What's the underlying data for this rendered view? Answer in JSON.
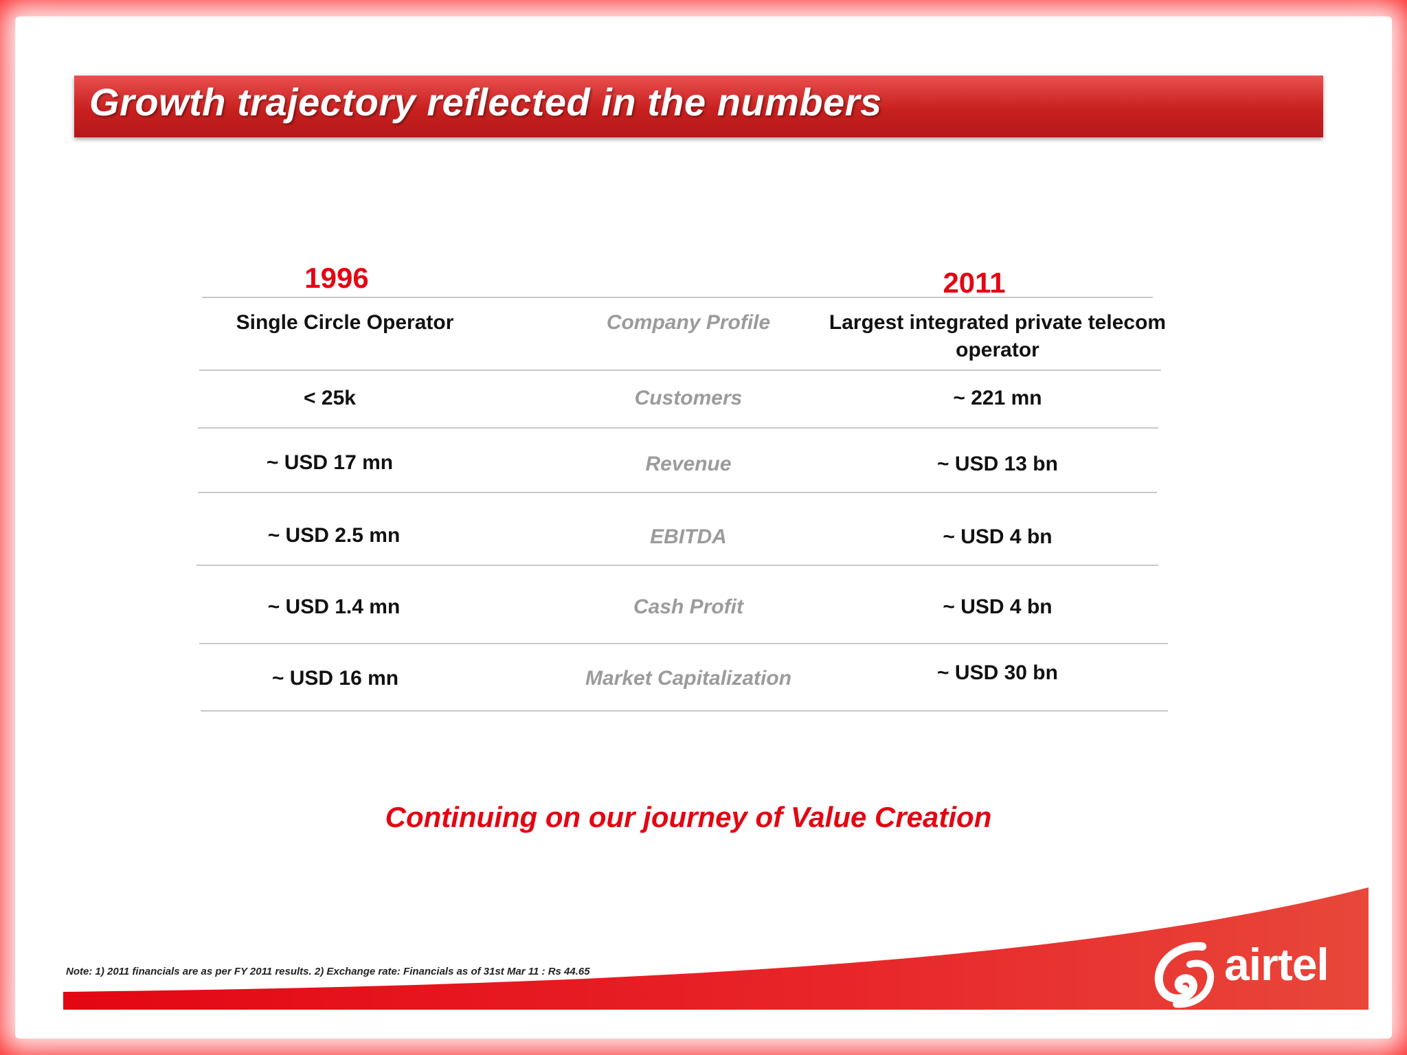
{
  "slide": {
    "title": "Growth trajectory reflected in the numbers",
    "year_left": "1996",
    "year_right": "2011",
    "rows": [
      {
        "left": "Single Circle Operator",
        "metric": "Company Profile",
        "right_line1": "Largest integrated private telecom",
        "right_line2": "operator"
      },
      {
        "left": "< 25k",
        "metric": "Customers",
        "right": "~ 221 mn"
      },
      {
        "left": "~ USD 17 mn",
        "metric": "Revenue",
        "right": "~ USD 13 bn"
      },
      {
        "left": "~ USD 2.5 mn",
        "metric": "EBITDA",
        "right": "~ USD 4 bn"
      },
      {
        "left": "~ USD 1.4 mn",
        "metric": "Cash Profit",
        "right": "~ USD 4 bn"
      },
      {
        "left": "~ USD 16 mn",
        "metric": "Market Capitalization",
        "right": "~ USD 30 bn"
      }
    ],
    "tagline": "Continuing on our journey of Value Creation",
    "note": "Note: 1) 2011 financials are as per FY 2011 results. 2) Exchange rate: Financials as of 31st Mar 11 : Rs 44.65",
    "logo_text": "airtel"
  },
  "colors": {
    "brand_red": "#e30613",
    "frame_red": "#e8141c",
    "metric_gray": "#9b9b9b"
  }
}
